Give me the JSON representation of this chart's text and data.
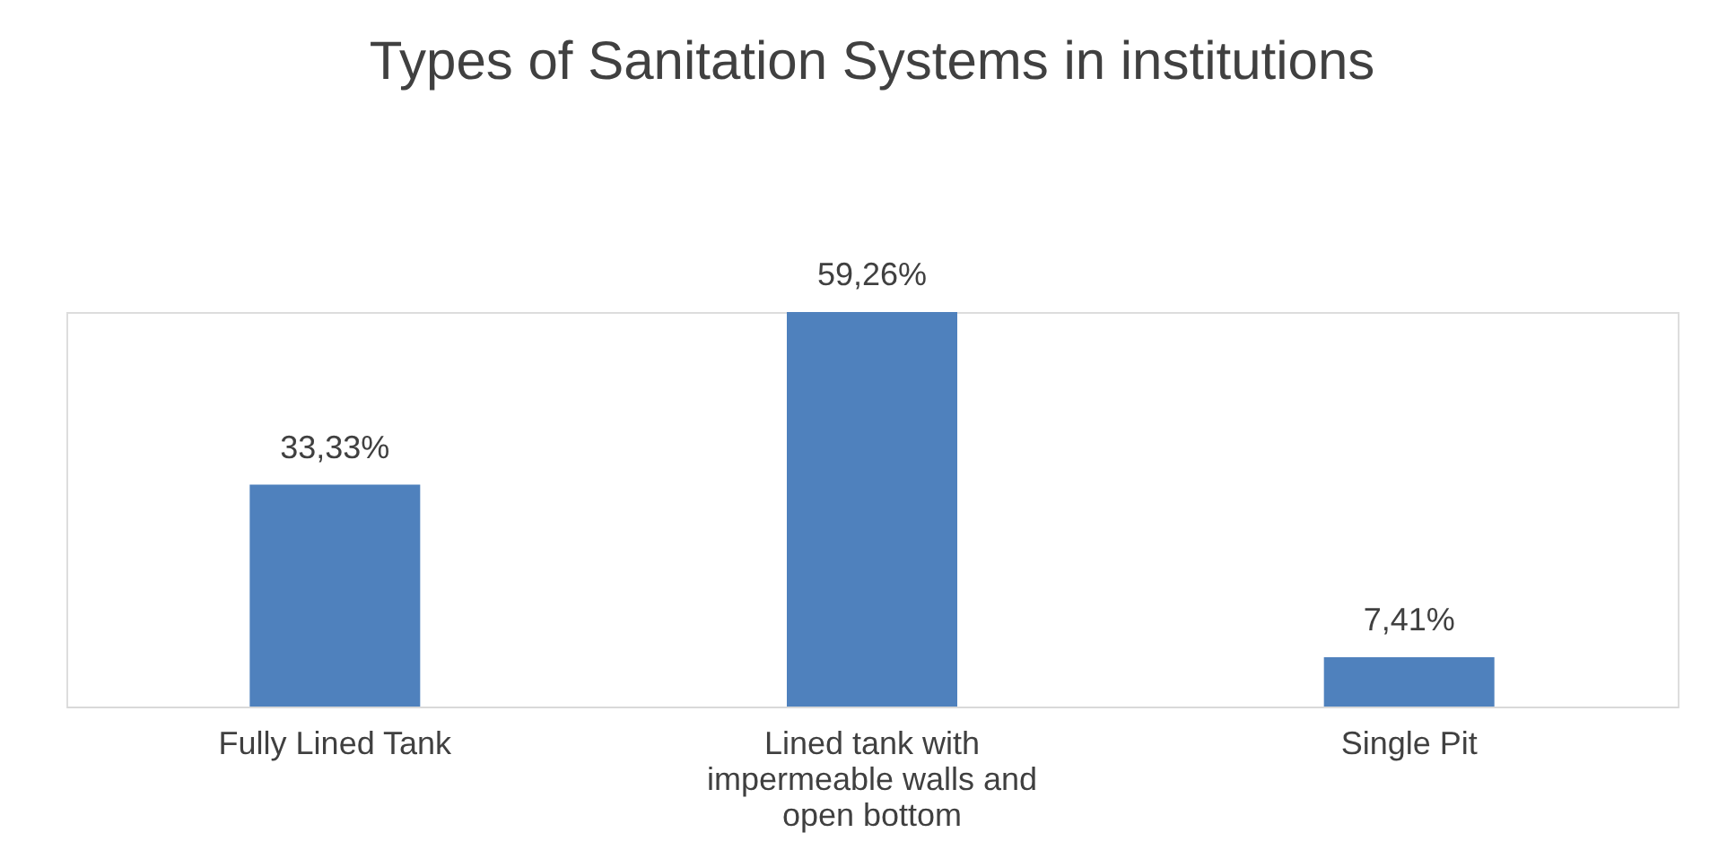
{
  "chart_data": {
    "type": "bar",
    "title": "Types of Sanitation Systems in institutions",
    "categories": [
      "Fully Lined Tank",
      "Lined tank with impermeable walls and open bottom",
      "Single Pit"
    ],
    "values": [
      33.33,
      59.26,
      7.41
    ],
    "value_labels": [
      "33,33%",
      "59,26%",
      "7,41%"
    ],
    "color": "#4f81bd"
  }
}
